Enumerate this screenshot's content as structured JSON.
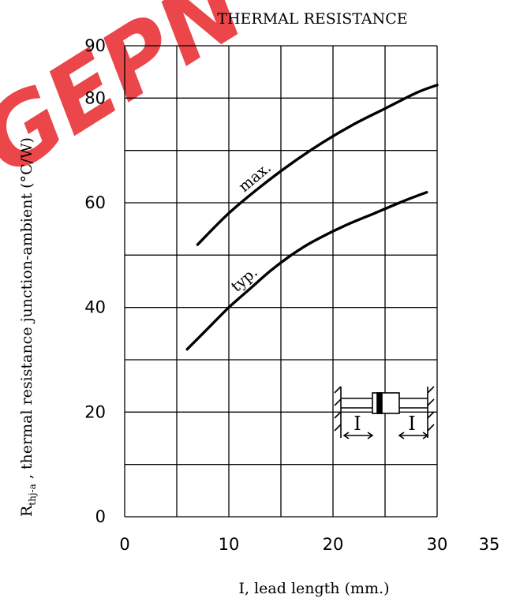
{
  "chart_data": {
    "type": "line",
    "title": "THERMAL RESISTANCE",
    "xlabel": "I, lead length (mm.)",
    "ylabel_symbol": "R",
    "ylabel_subscript": "thj-a",
    "ylabel_text": " , thermal resistance junction-ambient (°C/W)",
    "xlim": [
      0,
      35
    ],
    "ylim": [
      0,
      90
    ],
    "x_ticks": [
      0,
      10,
      20,
      30,
      35
    ],
    "y_ticks": [
      0,
      20,
      40,
      60,
      80,
      90
    ],
    "x_grid": [
      0,
      5,
      10,
      15,
      20,
      25,
      30
    ],
    "y_grid": [
      0,
      10,
      20,
      30,
      40,
      50,
      60,
      70,
      80,
      90
    ],
    "grid": true,
    "series": [
      {
        "name": "max.",
        "x": [
          7,
          10,
          13,
          16,
          19,
          22,
          25,
          28,
          30
        ],
        "y": [
          52,
          58,
          63,
          67.5,
          71.5,
          75,
          78,
          81,
          82.5
        ]
      },
      {
        "name": "typ.",
        "x": [
          6,
          8,
          10,
          12,
          14,
          16,
          18,
          21,
          24,
          27,
          29
        ],
        "y": [
          32,
          36,
          40,
          43.5,
          47,
          50,
          52.5,
          55.5,
          58,
          60.5,
          62
        ]
      }
    ],
    "inset_labels": [
      "I",
      "I"
    ],
    "watermark": "GEPN",
    "colors": {
      "line": "#000000",
      "grid": "#000000",
      "watermark": "#e8262a"
    }
  }
}
